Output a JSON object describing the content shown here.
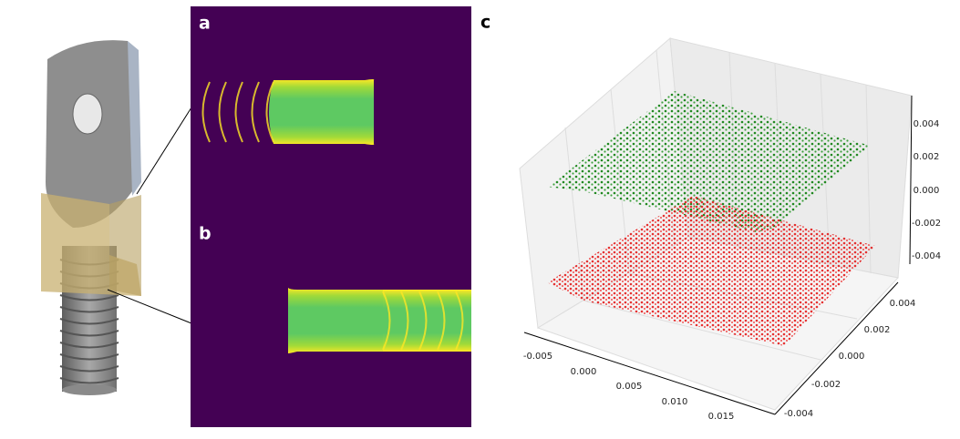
{
  "panels": {
    "a": "a",
    "b": "b",
    "c": "c"
  },
  "axes": {
    "x_ticks": [
      "-0.005",
      "0.000",
      "0.005",
      "0.010",
      "0.015"
    ],
    "y_ticks": [
      "0.004",
      "0.002",
      "0.000",
      "-0.002",
      "-0.004"
    ],
    "z_ticks": [
      "0.004",
      "0.002",
      "0.000",
      "-0.002",
      "-0.004"
    ]
  }
}
